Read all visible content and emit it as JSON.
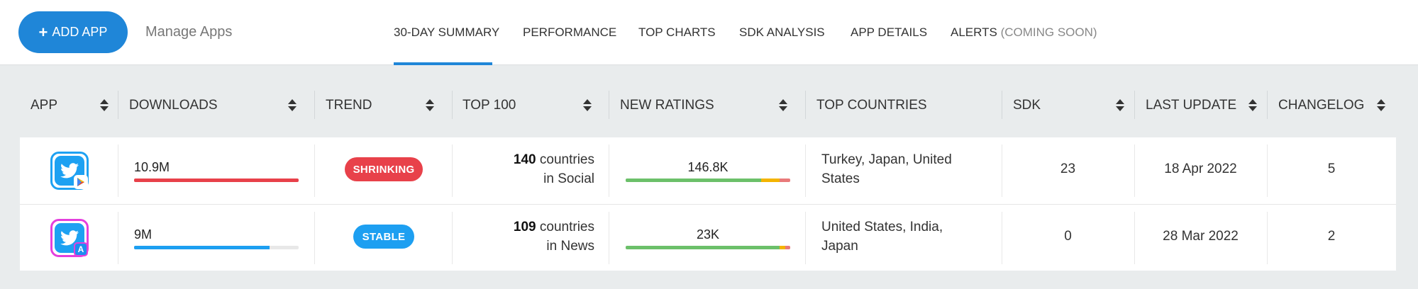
{
  "header": {
    "add_app_label": "ADD APP",
    "manage_apps_label": "Manage Apps",
    "tabs": [
      {
        "label": "30-DAY SUMMARY",
        "active": true
      },
      {
        "label": "PERFORMANCE"
      },
      {
        "label": "TOP CHARTS"
      },
      {
        "label": "SDK ANALYSIS"
      },
      {
        "label": "APP DETAILS"
      },
      {
        "label": "ALERTS",
        "suffix": "(COMING SOON)"
      }
    ]
  },
  "table": {
    "columns": [
      "APP",
      "DOWNLOADS",
      "TREND",
      "TOP 100",
      "NEW RATINGS",
      "TOP COUNTRIES",
      "SDK",
      "LAST UPDATE",
      "CHANGELOG"
    ],
    "rows": [
      {
        "app_icon": "twitter-icon",
        "store_badge": "google-play-icon",
        "icon_border_color": "#1da1f2",
        "downloads": "10.9M",
        "downloads_fraction": 1.0,
        "downloads_color": "#e8414a",
        "trend": "SHRINKING",
        "trend_color": "#e8414a",
        "top100_count": "140",
        "top100_text1": "countries",
        "top100_text2": "in Social",
        "new_ratings": "146.8K",
        "ratings_breakdown": [
          {
            "fraction": 0.825,
            "color": "#6cc06a"
          },
          {
            "fraction": 0.11,
            "color": "#f4b400"
          },
          {
            "fraction": 0.065,
            "color": "#e97a7a"
          }
        ],
        "top_countries": "Turkey, Japan, United States",
        "sdk": "23",
        "last_update": "18 Apr 2022",
        "changelog": "5"
      },
      {
        "app_icon": "twitter-icon",
        "store_badge": "app-store-icon",
        "icon_border_color": "#e43fdd",
        "downloads": "9M",
        "downloads_fraction": 0.825,
        "downloads_color": "#1d9ff1",
        "trend": "STABLE",
        "trend_color": "#1d9ff1",
        "top100_count": "109",
        "top100_text1": "countries",
        "top100_text2": "in News",
        "new_ratings": "23K",
        "ratings_breakdown": [
          {
            "fraction": 0.935,
            "color": "#6cc06a"
          },
          {
            "fraction": 0.035,
            "color": "#f4b400"
          },
          {
            "fraction": 0.03,
            "color": "#e97a7a"
          }
        ],
        "top_countries": "United States, India, Japan",
        "sdk": "0",
        "last_update": "28 Mar 2022",
        "changelog": "2"
      }
    ]
  },
  "colors": {
    "accent": "#1f86d8",
    "page_bg": "#e9eced"
  }
}
